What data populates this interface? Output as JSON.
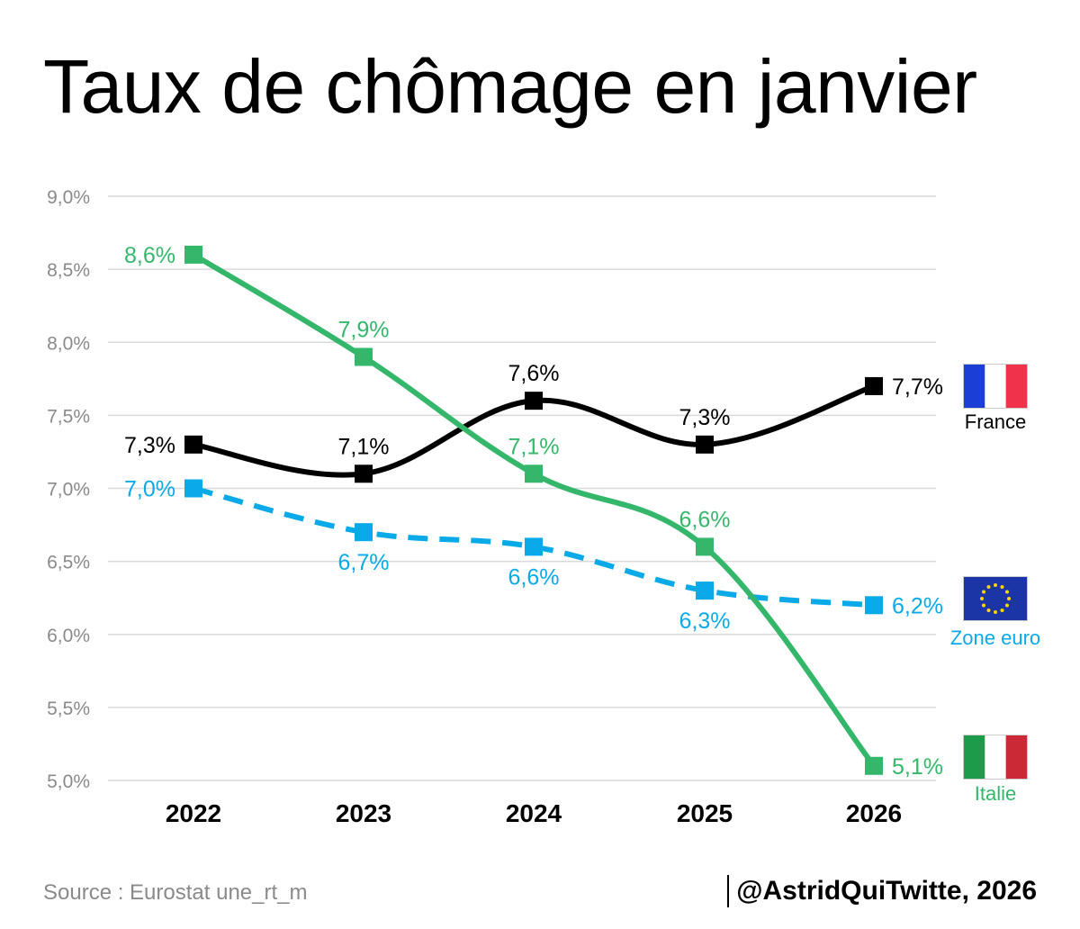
{
  "title": "Taux de chômage en janvier",
  "footer": {
    "source": "Source : Eurostat une_rt_m",
    "credit": "@AstridQuiTwitte, 2026"
  },
  "colors": {
    "france": "#000000",
    "zone_euro": "#0aaae8",
    "italie": "#35b76b",
    "grid": "#d9d9d9",
    "axis_text": "#8a8a8a"
  },
  "chart_data": {
    "type": "line",
    "x": [
      "2022",
      "2023",
      "2024",
      "2025",
      "2026"
    ],
    "ylim": [
      5.0,
      9.0
    ],
    "yticks": [
      "5,0%",
      "5,5%",
      "6,0%",
      "6,5%",
      "7,0%",
      "7,5%",
      "8,0%",
      "8,5%",
      "9,0%"
    ],
    "grid": true,
    "series": [
      {
        "key": "france",
        "name": "France",
        "values": [
          7.3,
          7.1,
          7.6,
          7.3,
          7.7
        ],
        "labels": [
          "7,3%",
          "7,1%",
          "7,6%",
          "7,3%",
          "7,7%"
        ],
        "style": "solid",
        "flag": "france-flag-icon"
      },
      {
        "key": "zone_euro",
        "name": "Zone euro",
        "values": [
          7.0,
          6.7,
          6.6,
          6.3,
          6.2
        ],
        "labels": [
          "7,0%",
          "6,7%",
          "6,6%",
          "6,3%",
          "6,2%"
        ],
        "style": "dashed",
        "flag": "eu-flag-icon"
      },
      {
        "key": "italie",
        "name": "Italie",
        "values": [
          8.6,
          7.9,
          7.1,
          6.6,
          5.1
        ],
        "labels": [
          "8,6%",
          "7,9%",
          "7,1%",
          "6,6%",
          "5,1%"
        ],
        "style": "solid",
        "flag": "italy-flag-icon"
      }
    ]
  }
}
